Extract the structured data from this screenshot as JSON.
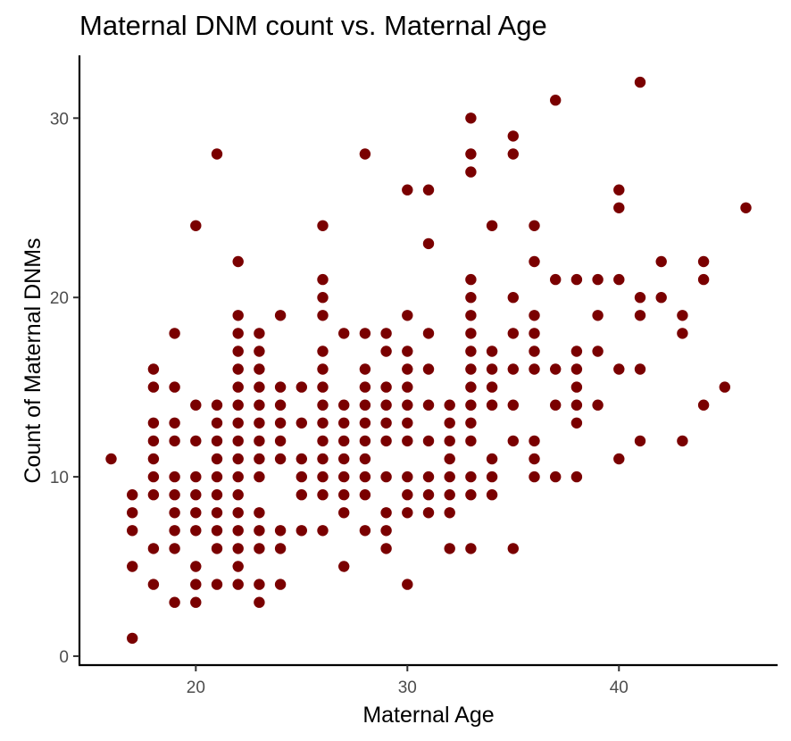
{
  "chart_data": {
    "type": "scatter",
    "title": "Maternal DNM count vs. Maternal Age",
    "xlabel": "Maternal Age",
    "ylabel": "Count of Maternal DNMs",
    "xlim": [
      14.5,
      47.5
    ],
    "ylim": [
      -0.5,
      33.5
    ],
    "x_ticks": [
      20,
      30,
      40
    ],
    "y_ticks": [
      0,
      10,
      20,
      30
    ],
    "x_tick_labels": [
      "20",
      "30",
      "40"
    ],
    "y_tick_labels": [
      "0",
      "10",
      "20",
      "30"
    ],
    "point_color": "#7a0000",
    "grid": false,
    "legend": "none",
    "points": [
      [
        16,
        11
      ],
      [
        17,
        1
      ],
      [
        17,
        5
      ],
      [
        17,
        7
      ],
      [
        17,
        8
      ],
      [
        17,
        9
      ],
      [
        18,
        4
      ],
      [
        18,
        6
      ],
      [
        18,
        9
      ],
      [
        18,
        10
      ],
      [
        18,
        11
      ],
      [
        18,
        12
      ],
      [
        18,
        13
      ],
      [
        18,
        15
      ],
      [
        18,
        16
      ],
      [
        19,
        3
      ],
      [
        19,
        6
      ],
      [
        19,
        7
      ],
      [
        19,
        8
      ],
      [
        19,
        9
      ],
      [
        19,
        10
      ],
      [
        19,
        12
      ],
      [
        19,
        13
      ],
      [
        19,
        15
      ],
      [
        19,
        18
      ],
      [
        20,
        3
      ],
      [
        20,
        4
      ],
      [
        20,
        5
      ],
      [
        20,
        7
      ],
      [
        20,
        8
      ],
      [
        20,
        9
      ],
      [
        20,
        10
      ],
      [
        20,
        12
      ],
      [
        20,
        14
      ],
      [
        20,
        24
      ],
      [
        21,
        4
      ],
      [
        21,
        6
      ],
      [
        21,
        7
      ],
      [
        21,
        8
      ],
      [
        21,
        9
      ],
      [
        21,
        10
      ],
      [
        21,
        11
      ],
      [
        21,
        12
      ],
      [
        21,
        13
      ],
      [
        21,
        14
      ],
      [
        21,
        28
      ],
      [
        22,
        4
      ],
      [
        22,
        5
      ],
      [
        22,
        6
      ],
      [
        22,
        7
      ],
      [
        22,
        8
      ],
      [
        22,
        9
      ],
      [
        22,
        10
      ],
      [
        22,
        11
      ],
      [
        22,
        12
      ],
      [
        22,
        13
      ],
      [
        22,
        14
      ],
      [
        22,
        15
      ],
      [
        22,
        16
      ],
      [
        22,
        17
      ],
      [
        22,
        18
      ],
      [
        22,
        19
      ],
      [
        22,
        22
      ],
      [
        23,
        3
      ],
      [
        23,
        4
      ],
      [
        23,
        6
      ],
      [
        23,
        7
      ],
      [
        23,
        8
      ],
      [
        23,
        10
      ],
      [
        23,
        11
      ],
      [
        23,
        12
      ],
      [
        23,
        13
      ],
      [
        23,
        14
      ],
      [
        23,
        15
      ],
      [
        23,
        16
      ],
      [
        23,
        17
      ],
      [
        23,
        18
      ],
      [
        24,
        4
      ],
      [
        24,
        6
      ],
      [
        24,
        7
      ],
      [
        24,
        11
      ],
      [
        24,
        12
      ],
      [
        24,
        13
      ],
      [
        24,
        14
      ],
      [
        24,
        15
      ],
      [
        24,
        19
      ],
      [
        25,
        7
      ],
      [
        25,
        9
      ],
      [
        25,
        10
      ],
      [
        25,
        11
      ],
      [
        25,
        13
      ],
      [
        25,
        15
      ],
      [
        26,
        7
      ],
      [
        26,
        9
      ],
      [
        26,
        10
      ],
      [
        26,
        11
      ],
      [
        26,
        12
      ],
      [
        26,
        13
      ],
      [
        26,
        14
      ],
      [
        26,
        15
      ],
      [
        26,
        16
      ],
      [
        26,
        17
      ],
      [
        26,
        19
      ],
      [
        26,
        20
      ],
      [
        26,
        21
      ],
      [
        26,
        24
      ],
      [
        27,
        5
      ],
      [
        27,
        8
      ],
      [
        27,
        9
      ],
      [
        27,
        10
      ],
      [
        27,
        11
      ],
      [
        27,
        12
      ],
      [
        27,
        13
      ],
      [
        27,
        14
      ],
      [
        27,
        18
      ],
      [
        28,
        7
      ],
      [
        28,
        9
      ],
      [
        28,
        10
      ],
      [
        28,
        11
      ],
      [
        28,
        12
      ],
      [
        28,
        13
      ],
      [
        28,
        14
      ],
      [
        28,
        15
      ],
      [
        28,
        16
      ],
      [
        28,
        18
      ],
      [
        28,
        28
      ],
      [
        29,
        6
      ],
      [
        29,
        7
      ],
      [
        29,
        8
      ],
      [
        29,
        10
      ],
      [
        29,
        12
      ],
      [
        29,
        13
      ],
      [
        29,
        14
      ],
      [
        29,
        15
      ],
      [
        29,
        17
      ],
      [
        29,
        18
      ],
      [
        30,
        4
      ],
      [
        30,
        8
      ],
      [
        30,
        9
      ],
      [
        30,
        10
      ],
      [
        30,
        12
      ],
      [
        30,
        13
      ],
      [
        30,
        14
      ],
      [
        30,
        15
      ],
      [
        30,
        16
      ],
      [
        30,
        17
      ],
      [
        30,
        19
      ],
      [
        30,
        26
      ],
      [
        31,
        8
      ],
      [
        31,
        9
      ],
      [
        31,
        10
      ],
      [
        31,
        12
      ],
      [
        31,
        14
      ],
      [
        31,
        16
      ],
      [
        31,
        18
      ],
      [
        31,
        23
      ],
      [
        31,
        26
      ],
      [
        32,
        6
      ],
      [
        32,
        8
      ],
      [
        32,
        9
      ],
      [
        32,
        10
      ],
      [
        32,
        11
      ],
      [
        32,
        12
      ],
      [
        32,
        13
      ],
      [
        32,
        14
      ],
      [
        33,
        6
      ],
      [
        33,
        9
      ],
      [
        33,
        10
      ],
      [
        33,
        12
      ],
      [
        33,
        13
      ],
      [
        33,
        14
      ],
      [
        33,
        15
      ],
      [
        33,
        16
      ],
      [
        33,
        17
      ],
      [
        33,
        18
      ],
      [
        33,
        19
      ],
      [
        33,
        20
      ],
      [
        33,
        21
      ],
      [
        33,
        27
      ],
      [
        33,
        28
      ],
      [
        33,
        30
      ],
      [
        34,
        9
      ],
      [
        34,
        10
      ],
      [
        34,
        11
      ],
      [
        34,
        14
      ],
      [
        34,
        15
      ],
      [
        34,
        16
      ],
      [
        34,
        17
      ],
      [
        34,
        24
      ],
      [
        35,
        6
      ],
      [
        35,
        12
      ],
      [
        35,
        14
      ],
      [
        35,
        16
      ],
      [
        35,
        18
      ],
      [
        35,
        20
      ],
      [
        35,
        28
      ],
      [
        35,
        29
      ],
      [
        36,
        10
      ],
      [
        36,
        11
      ],
      [
        36,
        12
      ],
      [
        36,
        16
      ],
      [
        36,
        17
      ],
      [
        36,
        18
      ],
      [
        36,
        19
      ],
      [
        36,
        22
      ],
      [
        36,
        24
      ],
      [
        37,
        10
      ],
      [
        37,
        14
      ],
      [
        37,
        16
      ],
      [
        37,
        21
      ],
      [
        37,
        31
      ],
      [
        38,
        10
      ],
      [
        38,
        13
      ],
      [
        38,
        14
      ],
      [
        38,
        15
      ],
      [
        38,
        16
      ],
      [
        38,
        17
      ],
      [
        38,
        21
      ],
      [
        39,
        14
      ],
      [
        39,
        17
      ],
      [
        39,
        19
      ],
      [
        39,
        21
      ],
      [
        40,
        11
      ],
      [
        40,
        16
      ],
      [
        40,
        21
      ],
      [
        40,
        25
      ],
      [
        40,
        26
      ],
      [
        41,
        12
      ],
      [
        41,
        16
      ],
      [
        41,
        19
      ],
      [
        41,
        20
      ],
      [
        41,
        32
      ],
      [
        42,
        20
      ],
      [
        42,
        22
      ],
      [
        43,
        12
      ],
      [
        43,
        18
      ],
      [
        43,
        19
      ],
      [
        44,
        14
      ],
      [
        44,
        21
      ],
      [
        44,
        22
      ],
      [
        45,
        15
      ],
      [
        46,
        25
      ]
    ]
  }
}
